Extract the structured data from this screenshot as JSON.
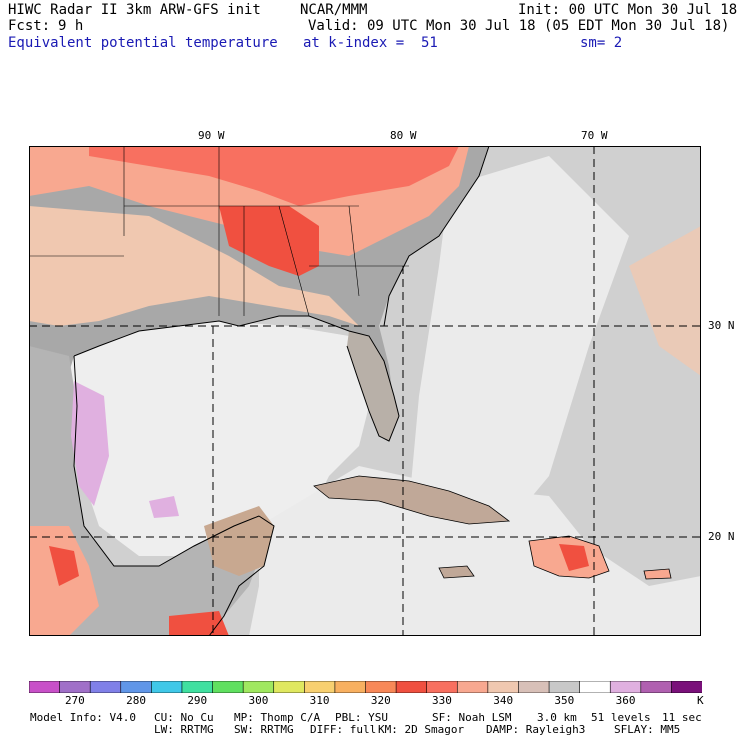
{
  "header": {
    "title": "HIWC Radar II 3km ARW-GFS init",
    "org": "NCAR/MMM",
    "init": "Init: 00 UTC Mon 30 Jul 18",
    "fcst_label": "Fcst:",
    "fcst_value": "9 h",
    "valid": "Valid: 09 UTC Mon 30 Jul 18 (05 EDT Mon 30 Jul 18)",
    "field": "Equivalent potential temperature",
    "level": "at k-index =  51",
    "smooth": "sm= 2"
  },
  "axes": {
    "lon_labels": [
      "90 W",
      "80 W",
      "70 W"
    ],
    "lat_labels": [
      "30 N",
      "20 N"
    ]
  },
  "colorbar": {
    "colors": [
      "#c850c8",
      "#a070c8",
      "#8080e8",
      "#6096e8",
      "#40c8e8",
      "#40e0a0",
      "#60e060",
      "#a0e860",
      "#e0e860",
      "#f8d070",
      "#f8b060",
      "#f88858",
      "#f05040",
      "#f87060",
      "#f8a890",
      "#f0c8b0",
      "#d8c0b8",
      "#c8c8c8",
      "#ffffff",
      "#e0b0e0",
      "#b060b0",
      "#7a107a"
    ],
    "labels": [
      "270",
      "280",
      "290",
      "300",
      "310",
      "320",
      "330",
      "340",
      "350",
      "360"
    ],
    "unit": "K"
  },
  "footer": {
    "line1": {
      "model": "Model Info: V4.0",
      "cu": "CU: No Cu",
      "mp": "MP: Thomp C/A",
      "pbl": "PBL: YSU",
      "sf": "SF: Noah LSM",
      "res": "3.0 km",
      "levels": "51 levels",
      "dt": "11 sec"
    },
    "line2": {
      "lw": "LW: RRTMG",
      "sw": "SW: RRTMG",
      "diff": "DIFF: full",
      "km": "KM: 2D Smagor",
      "damp": "DAMP: Rayleigh3",
      "sflay": "SFLAY: MM5"
    }
  },
  "map_colors": {
    "ocean": "#d0d0d0",
    "ocean_light": "#ececec",
    "gulf": "#eeeeee",
    "land": "#a8a8a8",
    "warm1": "#f0c8b0",
    "warm2": "#f8a890",
    "warm3": "#f87060",
    "warm4": "#f05040",
    "purple": "#e0b0e0"
  }
}
